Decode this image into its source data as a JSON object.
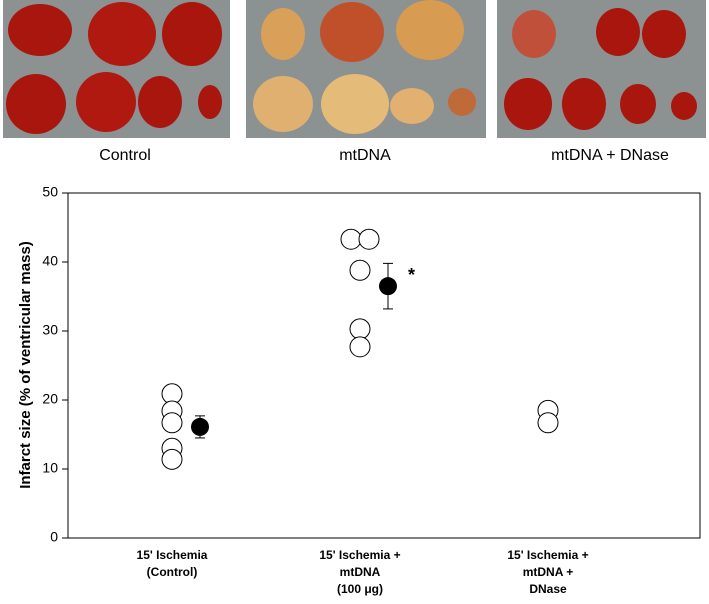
{
  "photo_labels": [
    "Control",
    "mtDNA",
    "mtDNA + DNase"
  ],
  "chart_data": {
    "type": "dot",
    "y_label": "Infarct size (% of ventricular mass)",
    "categories": [
      [
        "15' Ischemia",
        "(Control)"
      ],
      [
        "15' Ischemia +",
        "mtDNA",
        "(100 μg)"
      ],
      [
        "15' Ischemia +",
        "mtDNA +",
        "DNase"
      ]
    ],
    "points": [
      [
        20.9,
        18.4,
        16.7,
        13.0,
        11.4
      ],
      [
        43.3,
        43.3,
        38.8,
        30.3,
        27.7
      ],
      [
        18.5,
        16.7
      ]
    ],
    "means": [
      16.1,
      36.5,
      null
    ],
    "errors": [
      1.6,
      3.3,
      null
    ],
    "annotations": [
      {
        "text": "*",
        "category": 1
      }
    ],
    "ylim": [
      0,
      50
    ],
    "yticks": [
      0,
      10,
      20,
      30,
      40,
      50
    ]
  }
}
